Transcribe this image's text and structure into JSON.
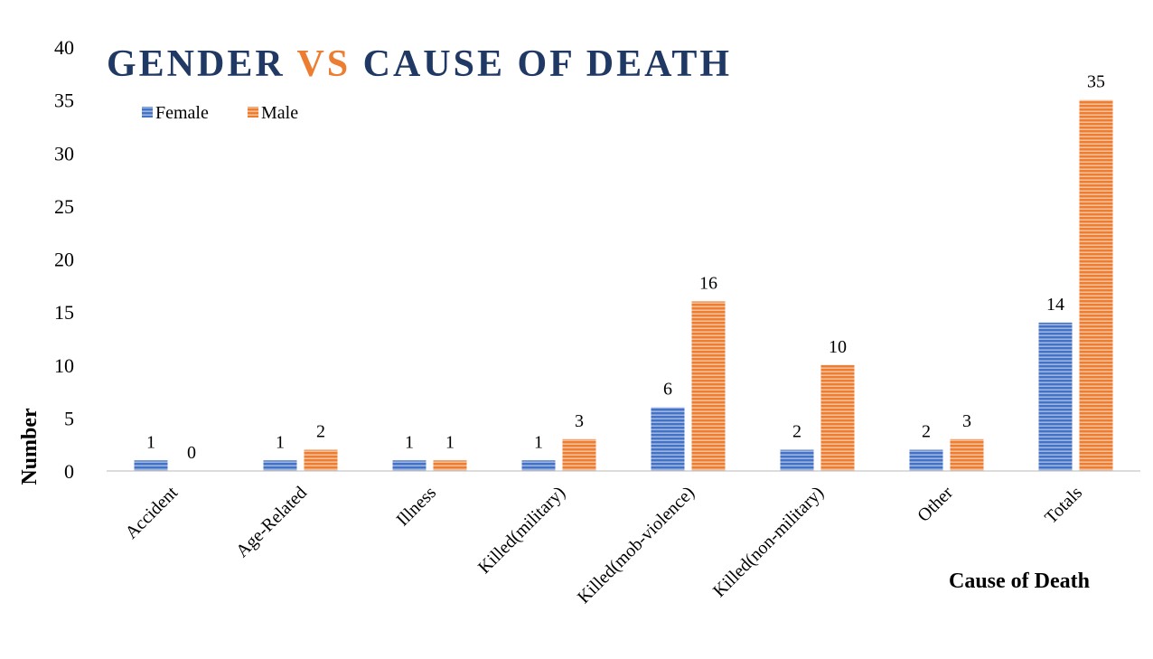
{
  "chart_data": {
    "type": "bar",
    "title": {
      "part1": "GENDER ",
      "part2": "VS",
      "part3": " CAUSE OF DEATH"
    },
    "xlabel": "Cause of Death",
    "ylabel": "Number",
    "ylim": [
      0,
      40
    ],
    "yticks": [
      "0",
      "5",
      "10",
      "15",
      "20",
      "25",
      "30",
      "35",
      "40"
    ],
    "categories": [
      "Accident",
      "Age-Related",
      "Illness",
      "Killed(military)",
      "Killed(mob-violence)",
      "Killed(non-military)",
      "Other",
      "Totals"
    ],
    "series": [
      {
        "name": "Female",
        "values": [
          1,
          1,
          1,
          1,
          6,
          2,
          2,
          14
        ],
        "color": "#4472C4"
      },
      {
        "name": "Male",
        "values": [
          0,
          2,
          1,
          3,
          16,
          10,
          3,
          35
        ],
        "color": "#ED7D31"
      }
    ],
    "data_labels": true,
    "legend_position": "top-left",
    "grid": false,
    "colors": {
      "title_main": "#1F3864",
      "title_accent": "#ED7D31"
    }
  }
}
